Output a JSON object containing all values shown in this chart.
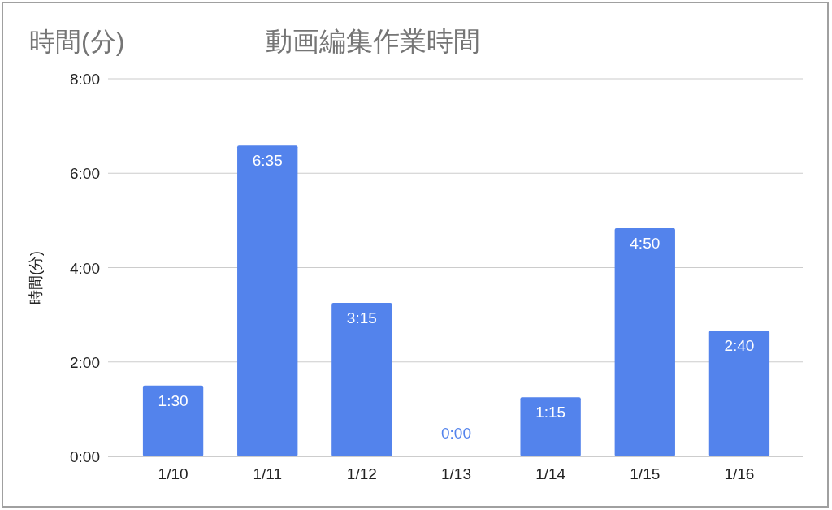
{
  "chart_data": {
    "type": "bar",
    "title": "動画編集作業時間",
    "ylabel": "時間(分)",
    "annotations": [
      "時間(分)"
    ],
    "categories": [
      "1/10",
      "1/11",
      "1/12",
      "1/13",
      "1/14",
      "1/15",
      "1/16"
    ],
    "values": [
      1.5,
      6.5833,
      3.25,
      0,
      1.25,
      4.8333,
      2.6667
    ],
    "value_labels": [
      "1:30",
      "6:35",
      "3:15",
      "0:00",
      "1:15",
      "4:50",
      "2:40"
    ],
    "color": "#5383ec",
    "ylim": [
      0,
      8
    ],
    "yticks": [
      {
        "value": 0,
        "label": "0:00"
      },
      {
        "value": 2,
        "label": "2:00"
      },
      {
        "value": 4,
        "label": "4:00"
      },
      {
        "value": 6,
        "label": "6:00"
      },
      {
        "value": 8,
        "label": "8:00"
      }
    ],
    "grid": "y"
  }
}
